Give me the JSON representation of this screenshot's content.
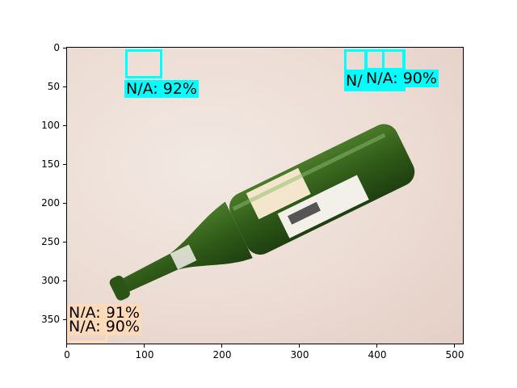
{
  "figure": {
    "x_ticks": [
      "0",
      "100",
      "200",
      "300",
      "400",
      "500"
    ],
    "y_ticks": [
      "0",
      "50",
      "100",
      "150",
      "200",
      "250",
      "300",
      "350"
    ],
    "xlim": [
      0,
      512
    ],
    "ylim": [
      384,
      0
    ]
  },
  "detections": [
    {
      "label": "N/A: 92%",
      "color": "#00ffff"
    },
    {
      "label": "N/",
      "color": "#00ffff"
    },
    {
      "label": "N/A: 90%",
      "color": "#00ffff"
    },
    {
      "label": "N/A: 91%",
      "color": "#ffdab9"
    },
    {
      "label": "N/A: 90%",
      "color": "#ffdab9"
    }
  ]
}
